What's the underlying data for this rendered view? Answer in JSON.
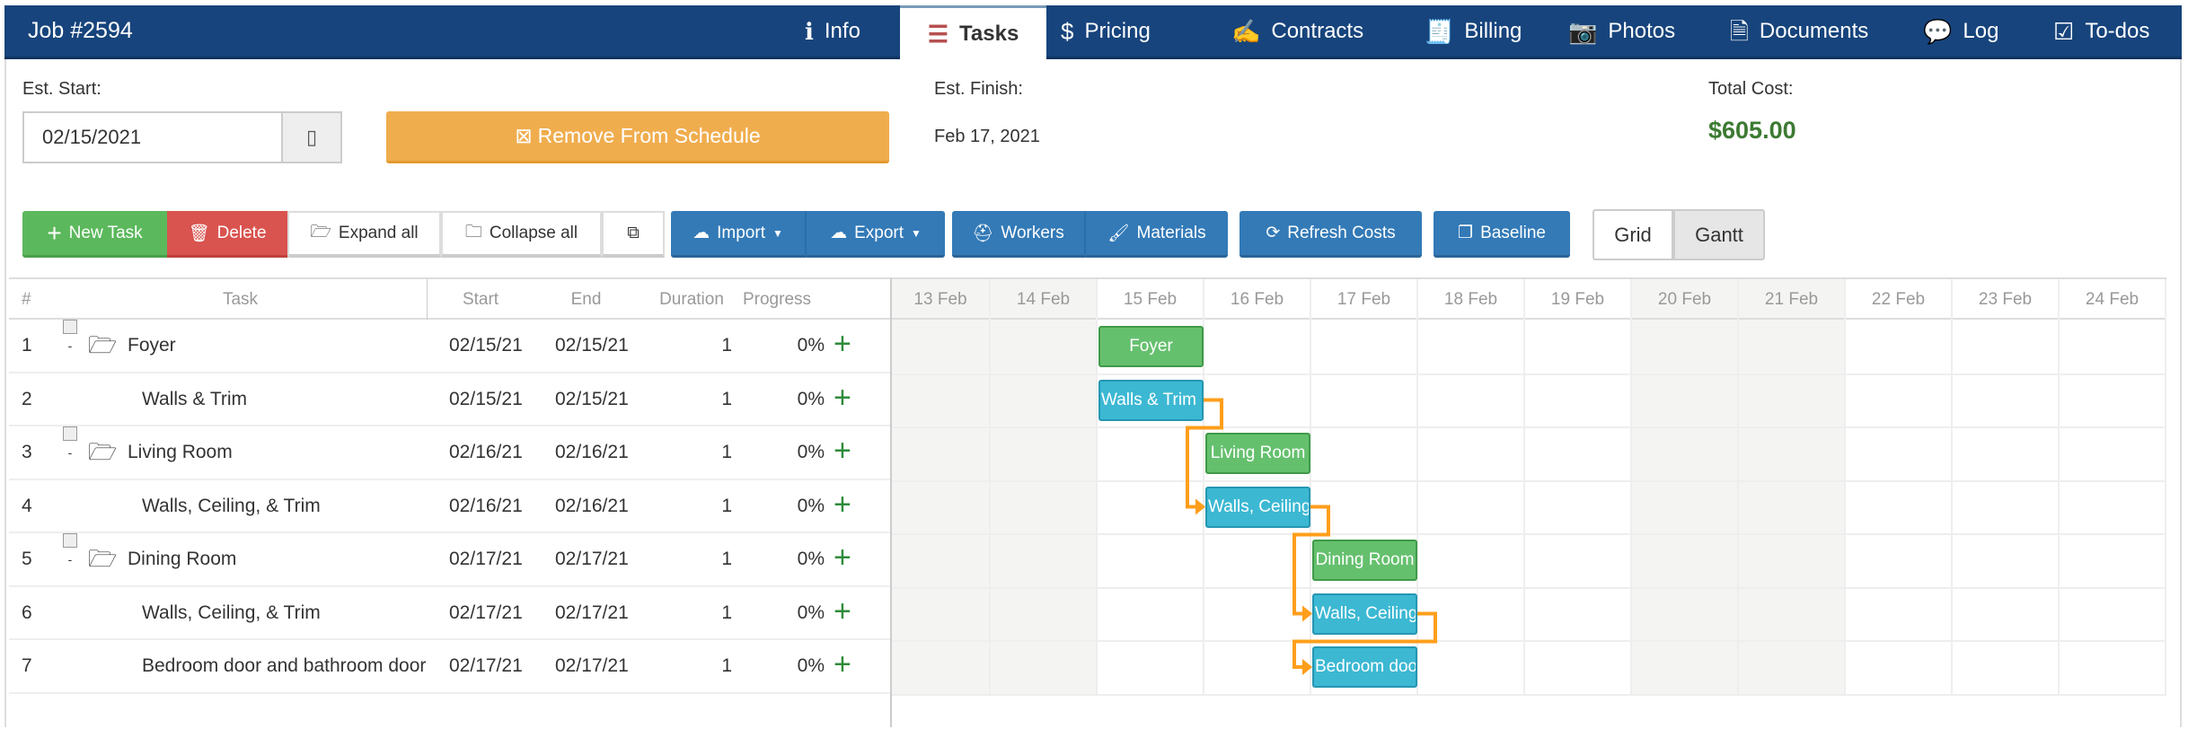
{
  "header": {
    "job_title": "Job #2594",
    "tabs": [
      {
        "label": "Info",
        "icon": "info-icon",
        "active": false
      },
      {
        "label": "Tasks",
        "icon": "tasks-icon",
        "active": true
      },
      {
        "label": "Pricing",
        "icon": "dollar-icon",
        "active": false
      },
      {
        "label": "Contracts",
        "icon": "signature-icon",
        "active": false
      },
      {
        "label": "Billing",
        "icon": "invoice-icon",
        "active": false
      },
      {
        "label": "Photos",
        "icon": "camera-icon",
        "active": false
      },
      {
        "label": "Documents",
        "icon": "document-icon",
        "active": false
      },
      {
        "label": "Log",
        "icon": "comments-icon",
        "active": false
      },
      {
        "label": "To-dos",
        "icon": "checklist-icon",
        "active": false
      }
    ]
  },
  "schedule": {
    "est_start_label": "Est. Start:",
    "est_start_value": "02/15/2021",
    "remove_label": "Remove From Schedule",
    "est_finish_label": "Est. Finish:",
    "est_finish_value": "Feb 17, 2021",
    "total_cost_label": "Total Cost:",
    "total_cost_value": "$605.00",
    "total_cost_color": "#3c7a32"
  },
  "toolbar": {
    "new_task": "New Task",
    "delete": "Delete",
    "expand_all": "Expand all",
    "collapse_all": "Collapse all",
    "import": "Import",
    "export": "Export",
    "workers": "Workers",
    "materials": "Materials",
    "refresh_costs": "Refresh Costs",
    "baseline": "Baseline",
    "view_grid": "Grid",
    "view_gantt": "Gantt",
    "active_view": "Gantt"
  },
  "grid": {
    "columns": [
      "#",
      "Task",
      "Start",
      "End",
      "Duration",
      "Progress"
    ],
    "rows": [
      {
        "num": "1",
        "task": "Foyer",
        "start": "02/15/21",
        "end": "02/15/21",
        "duration": "1",
        "progress": "0%",
        "parent": true
      },
      {
        "num": "2",
        "task": "Walls & Trim",
        "start": "02/15/21",
        "end": "02/15/21",
        "duration": "1",
        "progress": "0%",
        "parent": false
      },
      {
        "num": "3",
        "task": "Living Room",
        "start": "02/16/21",
        "end": "02/16/21",
        "duration": "1",
        "progress": "0%",
        "parent": true
      },
      {
        "num": "4",
        "task": "Walls, Ceiling, & Trim",
        "start": "02/16/21",
        "end": "02/16/21",
        "duration": "1",
        "progress": "0%",
        "parent": false
      },
      {
        "num": "5",
        "task": "Dining Room",
        "start": "02/17/21",
        "end": "02/17/21",
        "duration": "1",
        "progress": "0%",
        "parent": true
      },
      {
        "num": "6",
        "task": "Walls, Ceiling, & Trim",
        "start": "02/17/21",
        "end": "02/17/21",
        "duration": "1",
        "progress": "0%",
        "parent": false
      },
      {
        "num": "7",
        "task": "Bedroom door and bathroom door",
        "start": "02/17/21",
        "end": "02/17/21",
        "duration": "1",
        "progress": "0%",
        "parent": false
      }
    ]
  },
  "gantt": {
    "days": [
      "13 Feb",
      "14 Feb",
      "15 Feb",
      "16 Feb",
      "17 Feb",
      "18 Feb",
      "19 Feb",
      "20 Feb",
      "21 Feb",
      "22 Feb",
      "23 Feb",
      "24 Feb"
    ],
    "weekend": [
      "13 Feb",
      "14 Feb",
      "20 Feb",
      "21 Feb"
    ],
    "bars": [
      {
        "label": "Foyer",
        "day": "15 Feb",
        "kind": "project"
      },
      {
        "label": "Walls & Trim",
        "day": "15 Feb",
        "kind": "task"
      },
      {
        "label": "Living Room",
        "day": "16 Feb",
        "kind": "project"
      },
      {
        "label": "Walls, Ceiling, & Trim",
        "day": "16 Feb",
        "kind": "task"
      },
      {
        "label": "Dining Room",
        "day": "17 Feb",
        "kind": "project"
      },
      {
        "label": "Walls, Ceiling, & Trim",
        "day": "17 Feb",
        "kind": "task"
      },
      {
        "label": "Bedroom door and bathroom door",
        "day": "17 Feb",
        "kind": "task"
      }
    ],
    "links": [
      [
        1,
        3
      ],
      [
        3,
        5
      ],
      [
        5,
        6
      ]
    ],
    "colors": {
      "project": "#65c06e",
      "task": "#3cb8d3",
      "link": "#ff9e1b"
    }
  }
}
